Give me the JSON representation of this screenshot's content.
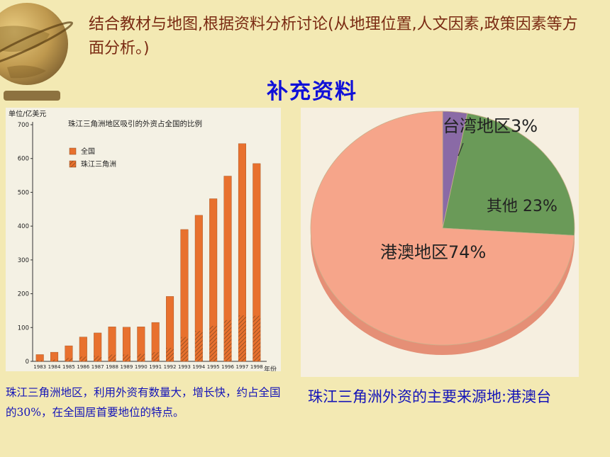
{
  "header": {
    "text": "结合教材与地图,根据资料分析讨论(从地理位置,人文因素,政策因素等方面分析。)"
  },
  "section_title": "补充资料",
  "captions": {
    "left": "珠江三角洲地区，利用外资有数量大，增长快，约占全国的30%，在全国居首要地位的特点。",
    "right": "珠江三角洲外资的主要来源地:港澳台"
  },
  "colors": {
    "background": "#f3e9b3",
    "header_text": "#7a2a12",
    "section_title": "#1010d8",
    "caption_text": "#1414b8",
    "bar_national": "#e8712e",
    "bar_delta_hatch": "#8a4a20",
    "pie_hk_macau": "#f6a58a",
    "pie_other": "#6a9a58",
    "pie_taiwan": "#8a6aa6"
  },
  "chart_data": [
    {
      "type": "bar",
      "title": "珠江三角洲地区吸引的外资占全国的比例",
      "ylabel": "单位/亿美元",
      "xlabel": "年份",
      "ylim": [
        0,
        700
      ],
      "yticks": [
        0,
        100,
        200,
        300,
        400,
        500,
        600,
        700
      ],
      "legend": [
        "全国",
        "珠江三角洲"
      ],
      "legend_position": "top-left",
      "categories": [
        "1983",
        "1984",
        "1985",
        "1986",
        "1987",
        "1988",
        "1989",
        "1990",
        "1991",
        "1992",
        "1993",
        "1994",
        "1995",
        "1996",
        "1997",
        "1998"
      ],
      "series": [
        {
          "name": "全国",
          "values": [
            20,
            27,
            46,
            72,
            84,
            102,
            101,
            102,
            115,
            192,
            390,
            432,
            481,
            548,
            644,
            585
          ]
        },
        {
          "name": "珠江三角洲",
          "values": [
            3,
            5,
            10,
            14,
            16,
            20,
            20,
            22,
            27,
            40,
            72,
            90,
            105,
            122,
            136,
            135
          ]
        }
      ]
    },
    {
      "type": "pie",
      "labels": [
        "港澳地区",
        "其他",
        "台湾地区"
      ],
      "values": [
        74,
        23,
        3
      ],
      "value_labels": [
        "港澳地区74%",
        "其他 23%",
        "台湾地区3%"
      ]
    }
  ]
}
